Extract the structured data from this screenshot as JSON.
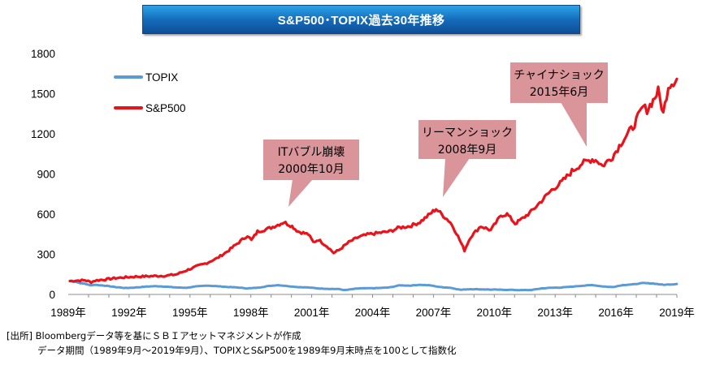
{
  "header": {
    "title": "S&P500･TOPIX過去30年推移"
  },
  "footnote": {
    "line1": "[出所] Bloombergデータ等を基にＳＢＩアセットマネジメントが作成",
    "line2": "データ期間（1989年9月～2019年9月）、TOPIXとS&P500を1989年9月末時点を100として指数化"
  },
  "colors": {
    "sp500": "#e8131b",
    "topix": "#5b9bd5",
    "callout": "#d9959a",
    "title_bg": "#1468b8"
  },
  "chart_data": {
    "type": "line",
    "title": "S&P500･TOPIX過去30年推移",
    "xlabel": "",
    "ylabel": "",
    "xlim": [
      1989.67,
      2019.67
    ],
    "ylim": [
      0,
      1800
    ],
    "yticks": [
      0,
      300,
      600,
      900,
      1200,
      1500,
      1800
    ],
    "ytick_labels": [
      "0",
      "300",
      "600",
      "900",
      "1200",
      "1500",
      "1800"
    ],
    "xticks": [
      1989,
      1992,
      1995,
      1998,
      2001,
      2004,
      2007,
      2010,
      2013,
      2016,
      2019
    ],
    "xtick_labels": [
      "1989年",
      "1992年",
      "1995年",
      "1998年",
      "2001年",
      "2004年",
      "2007年",
      "2010年",
      "2013年",
      "2016年",
      "2019年"
    ],
    "legend": {
      "position": "top-left"
    },
    "series": [
      {
        "name": "TOPIX",
        "x": [
          1989.75,
          1990.0,
          1990.25,
          1990.5,
          1990.75,
          1991.0,
          1991.5,
          1992.0,
          1992.5,
          1993.0,
          1993.5,
          1994.0,
          1994.5,
          1995.0,
          1995.5,
          1996.0,
          1996.5,
          1997.0,
          1997.5,
          1998.0,
          1998.5,
          1999.0,
          1999.5,
          2000.0,
          2000.5,
          2001.0,
          2001.5,
          2002.0,
          2002.5,
          2003.0,
          2003.3,
          2003.7,
          2004.0,
          2004.5,
          2005.0,
          2005.5,
          2006.0,
          2006.5,
          2007.0,
          2007.5,
          2008.0,
          2008.5,
          2009.0,
          2009.5,
          2010.0,
          2010.5,
          2011.0,
          2011.5,
          2012.0,
          2012.5,
          2013.0,
          2013.5,
          2014.0,
          2014.5,
          2015.0,
          2015.5,
          2016.0,
          2016.5,
          2017.0,
          2017.5,
          2018.0,
          2018.5,
          2019.0,
          2019.5,
          2019.67
        ],
        "values": [
          100,
          96,
          85,
          80,
          68,
          72,
          65,
          55,
          48,
          52,
          58,
          62,
          58,
          52,
          50,
          60,
          66,
          62,
          56,
          52,
          45,
          50,
          62,
          70,
          62,
          55,
          52,
          45,
          42,
          40,
          32,
          40,
          45,
          46,
          48,
          52,
          68,
          66,
          72,
          68,
          55,
          50,
          35,
          40,
          38,
          36,
          35,
          34,
          32,
          33,
          45,
          50,
          52,
          58,
          65,
          70,
          60,
          55,
          70,
          75,
          85,
          82,
          72,
          76,
          78
        ]
      },
      {
        "name": "S&P500",
        "x": [
          1989.75,
          1990.0,
          1990.5,
          1990.8,
          1991.0,
          1991.5,
          1992.0,
          1992.5,
          1993.0,
          1993.5,
          1994.0,
          1994.5,
          1995.0,
          1995.5,
          1996.0,
          1996.5,
          1997.0,
          1997.5,
          1998.0,
          1998.5,
          1998.7,
          1999.0,
          1999.5,
          2000.0,
          2000.3,
          2000.7,
          2001.0,
          2001.5,
          2001.75,
          2002.0,
          2002.5,
          2002.75,
          2003.0,
          2003.5,
          2004.0,
          2004.5,
          2005.0,
          2005.5,
          2006.0,
          2006.5,
          2007.0,
          2007.5,
          2007.8,
          2008.0,
          2008.5,
          2008.8,
          2009.2,
          2009.5,
          2010.0,
          2010.5,
          2011.0,
          2011.3,
          2011.7,
          2012.0,
          2012.5,
          2013.0,
          2013.5,
          2014.0,
          2014.5,
          2015.0,
          2015.5,
          2015.75,
          2016.0,
          2016.5,
          2017.0,
          2017.5,
          2018.0,
          2018.2,
          2018.5,
          2018.75,
          2019.0,
          2019.25,
          2019.5,
          2019.67
        ],
        "values": [
          100,
          103,
          106,
          92,
          104,
          112,
          122,
          128,
          133,
          135,
          138,
          140,
          150,
          180,
          210,
          235,
          270,
          320,
          380,
          440,
          405,
          470,
          490,
          520,
          540,
          510,
          470,
          450,
          390,
          410,
          350,
          310,
          330,
          390,
          430,
          450,
          460,
          470,
          500,
          510,
          540,
          600,
          640,
          610,
          540,
          460,
          330,
          430,
          510,
          480,
          590,
          600,
          530,
          560,
          620,
          700,
          780,
          840,
          920,
          980,
          1010,
          1000,
          960,
          1030,
          1150,
          1250,
          1400,
          1380,
          1450,
          1520,
          1350,
          1560,
          1590,
          1610
        ]
      }
    ],
    "annotations": [
      {
        "text": [
          "ITバブル崩壊",
          "2000年10月"
        ],
        "x": 2000.75
      },
      {
        "text": [
          "リーマンショック",
          "2008年9月"
        ],
        "x": 2008.7
      },
      {
        "text": [
          "チャイナショック",
          "2015年6月"
        ],
        "x": 2015.45
      }
    ]
  }
}
